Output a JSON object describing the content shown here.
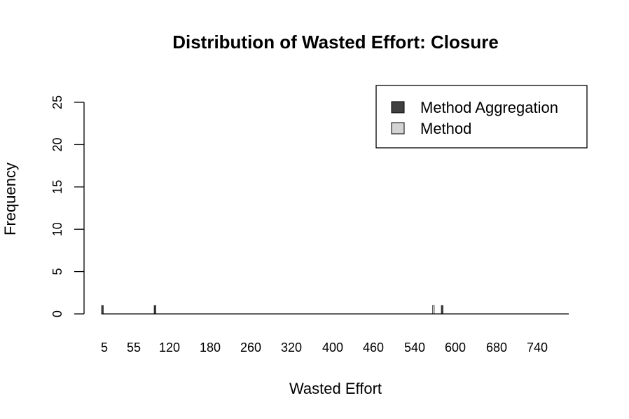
{
  "chart_data": {
    "type": "bar",
    "title": "Distribution of Wasted Effort: Closure",
    "xlabel": "Wasted Effort",
    "ylabel": "Frequency",
    "ylim": [
      0,
      25
    ],
    "yticks": [
      0,
      5,
      10,
      15,
      20,
      25
    ],
    "xtick_labels": [
      "5",
      "55",
      "120",
      "180",
      "260",
      "320",
      "400",
      "460",
      "540",
      "600",
      "680",
      "740"
    ],
    "legend": {
      "position": "top-right",
      "entries": [
        {
          "label": "Method Aggregation",
          "color": "#404040"
        },
        {
          "label": "Method",
          "color": "#d3d3d3"
        }
      ]
    },
    "categories": [
      "5",
      "55",
      "565",
      "580"
    ],
    "series": [
      {
        "name": "Method Aggregation",
        "values": [
          1,
          1,
          0,
          1
        ]
      },
      {
        "name": "Method",
        "values": [
          0,
          0,
          1,
          0
        ]
      }
    ],
    "grid": false
  }
}
